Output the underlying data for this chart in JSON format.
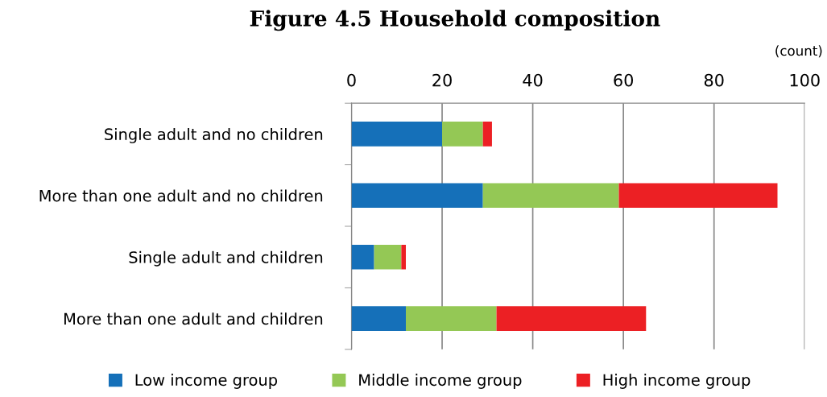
{
  "chart_data": {
    "type": "bar",
    "orientation": "horizontal",
    "stacked": true,
    "title": "Figure 4.5 Household composition",
    "annotations": [
      "(count)"
    ],
    "categories": [
      "Single adult and no children",
      "More than one adult and no children",
      "Single adult and children",
      "More than one adult and children"
    ],
    "series": [
      {
        "name": "Low income group",
        "color": "#1570b9",
        "values": [
          20,
          29,
          5,
          12
        ]
      },
      {
        "name": "Middle income group",
        "color": "#94c855",
        "values": [
          9,
          30,
          6,
          20
        ]
      },
      {
        "name": "High income group",
        "color": "#ec2024",
        "values": [
          2,
          35,
          1,
          33
        ]
      }
    ],
    "xlim": [
      0,
      100
    ],
    "xticks": [
      0,
      20,
      40,
      60,
      80,
      100
    ],
    "grid": "x",
    "legend": "bottom"
  }
}
